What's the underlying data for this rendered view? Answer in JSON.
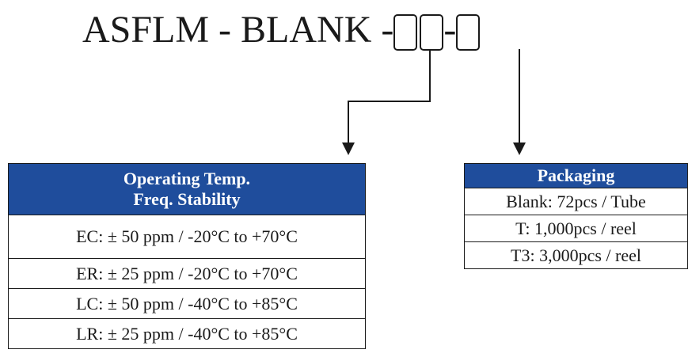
{
  "part_number": {
    "prefix": "ASFLM - BLANK - ",
    "separator": " - "
  },
  "temp_table": {
    "header_line1": "Operating Temp.",
    "header_line2": "Freq. Stability",
    "rows": [
      "EC: ± 50 ppm / -20°C to +70°C",
      "ER: ± 25 ppm / -20°C to +70°C",
      "LC: ± 50 ppm / -40°C to +85°C",
      "LR: ± 25 ppm / -40°C to +85°C"
    ]
  },
  "packaging_table": {
    "header": "Packaging",
    "rows": [
      "Blank: 72pcs / Tube",
      "T:  1,000pcs / reel",
      "T3:  3,000pcs / reel"
    ]
  },
  "colors": {
    "header_bg": "#1f4d9c",
    "header_text": "#ffffff",
    "line": "#1a1a1a"
  }
}
